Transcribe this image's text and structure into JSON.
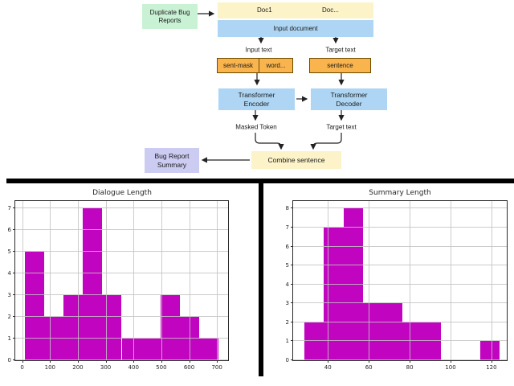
{
  "diagram": {
    "nodes": {
      "duplicate_bug_reports": "Duplicate Bug\nReports",
      "doc1": "Doc1",
      "doc_more": "Doc...",
      "input_document": "Input document",
      "sent_mask": "sent-mask",
      "word_more": "word...",
      "sentence": "sentence",
      "transformer_encoder": "Transformer\nEncoder",
      "transformer_decoder": "Transformer\nDecoder",
      "combine_sentence": "Combine sentence",
      "bug_report_summary": "Bug Report\nSummary"
    },
    "edge_labels": {
      "input_text": "Input text",
      "target_text_top": "Target text",
      "masked_token": "Masked Token",
      "target_text_bottom": "Target text"
    },
    "colors": {
      "green": "#c9f2d5",
      "yellow": "#fcf3c8",
      "blue": "#aed6f4",
      "orange": "#f9b44e",
      "orange_border": "#6e4a00",
      "lavender": "#ccccf2",
      "arrow": "#222222"
    }
  },
  "chart_data": [
    {
      "type": "bar",
      "subtype": "histogram",
      "title": "Dialogue Length",
      "xlabel": "",
      "ylabel": "",
      "bin_edges": [
        10,
        79.5,
        149,
        218.5,
        288,
        357.5,
        427,
        496.5,
        566,
        635.5,
        705
      ],
      "counts": [
        5,
        2,
        3,
        7,
        3,
        1,
        1,
        3,
        2,
        1
      ],
      "bar_color": "#c004c0",
      "xticks": [
        0,
        100,
        200,
        300,
        400,
        500,
        600,
        700
      ],
      "yticks": [
        0,
        1,
        2,
        3,
        4,
        5,
        6,
        7
      ],
      "xlim": [
        -25,
        740
      ],
      "ylim": [
        0,
        7.35
      ],
      "grid": true,
      "legend": null
    },
    {
      "type": "bar",
      "subtype": "histogram",
      "title": "Summary Length",
      "xlabel": "",
      "ylabel": "",
      "bin_edges": [
        28.5,
        38.05,
        47.6,
        57.15,
        66.7,
        76.25,
        85.8,
        95.35,
        104.9,
        114.45,
        124
      ],
      "counts": [
        2,
        7,
        8,
        3,
        3,
        2,
        2,
        0,
        0,
        1
      ],
      "bar_color": "#c004c0",
      "xticks": [
        40,
        60,
        80,
        100,
        120
      ],
      "yticks": [
        0,
        1,
        2,
        3,
        4,
        5,
        6,
        7,
        8
      ],
      "xlim": [
        23,
        127.5
      ],
      "ylim": [
        0,
        8.4
      ],
      "grid": true,
      "legend": null
    }
  ]
}
